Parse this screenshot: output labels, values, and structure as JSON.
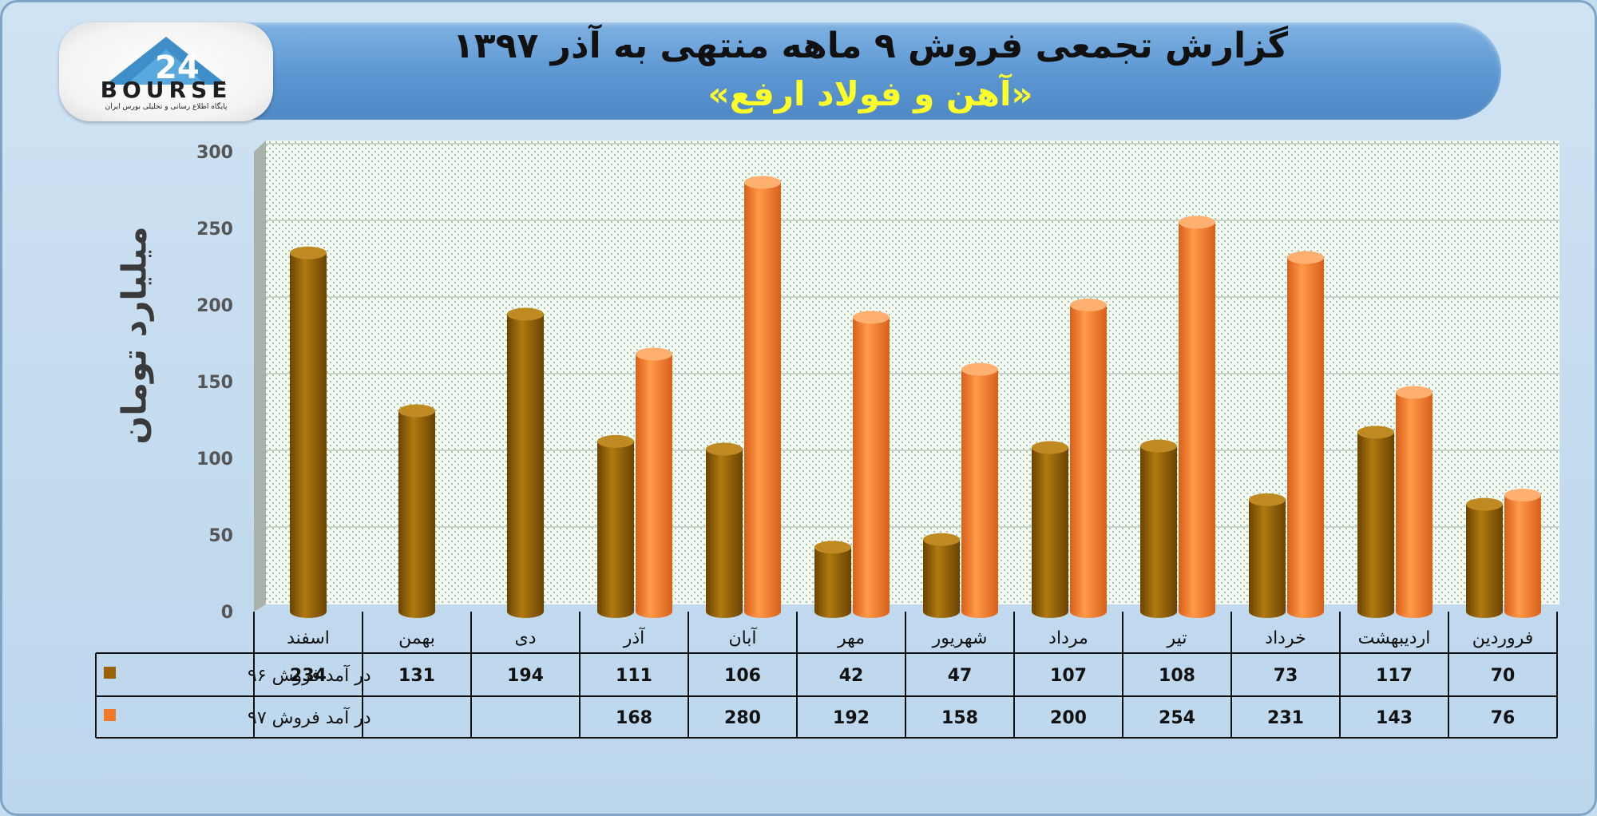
{
  "header": {
    "title": "گزارش تجمعی فروش ۹ ماهه منتهی به آذر ۱۳۹۷",
    "subtitle": "«آهن و فولاد ارفع»"
  },
  "logo": {
    "text": "BOURSE",
    "mark": "24",
    "tagline": "پایگاه اطلاع رسانی و تحلیلی بورس ایران"
  },
  "chart_data": {
    "type": "bar",
    "ylabel": "میلیارد تومان",
    "ylim": [
      0,
      300
    ],
    "yticks": [
      "0",
      "50",
      "100",
      "150",
      "200",
      "250",
      "300"
    ],
    "categories": [
      "فروردین",
      "اردیبهشت",
      "خرداد",
      "تیر",
      "مرداد",
      "شهریور",
      "مهر",
      "آبان",
      "آذر",
      "دی",
      "بهمن",
      "اسفند"
    ],
    "series": [
      {
        "name": "در آمد فروش ۹۶",
        "color": "#9a6200",
        "values": [
          70,
          117,
          73,
          108,
          107,
          47,
          42,
          106,
          111,
          194,
          131,
          234
        ]
      },
      {
        "name": "در آمد فروش ۹۷",
        "color": "#f07a2a",
        "values": [
          76,
          143,
          231,
          254,
          200,
          158,
          192,
          280,
          168,
          null,
          null,
          null
        ]
      }
    ],
    "grid": true,
    "legend": "table-left"
  }
}
